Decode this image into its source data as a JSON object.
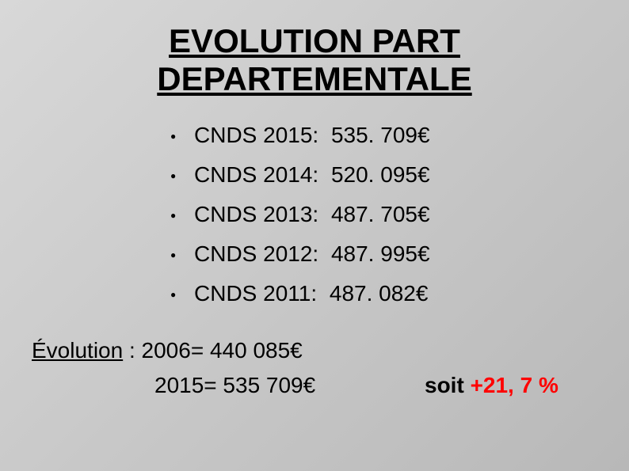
{
  "title_line1": "EVOLUTION PART",
  "title_line2": "DEPARTEMENTALE",
  "bullets": [
    {
      "label": "CNDS 2015:",
      "value": "535. 709€"
    },
    {
      "label": "CNDS 2014:",
      "value": "520. 095€"
    },
    {
      "label": "CNDS 2013:",
      "value": "487. 705€"
    },
    {
      "label": "CNDS 2012:",
      "value": "487. 995€"
    },
    {
      "label": "CNDS 2011:",
      "value": "487. 082€"
    }
  ],
  "evolution": {
    "label": "Évolution",
    "separator": " :  ",
    "year1_text": "2006= 440 085€",
    "year2_text": "2015= 535 709€",
    "soit_text": "soit ",
    "percent_text": "+21, 7 %"
  },
  "colors": {
    "text": "#000000",
    "highlight": "#ff0000",
    "background_start": "#d8d8d8",
    "background_end": "#b8b8b8"
  },
  "fonts": {
    "title_size": 42,
    "body_size": 28,
    "bullet_size": 12
  }
}
